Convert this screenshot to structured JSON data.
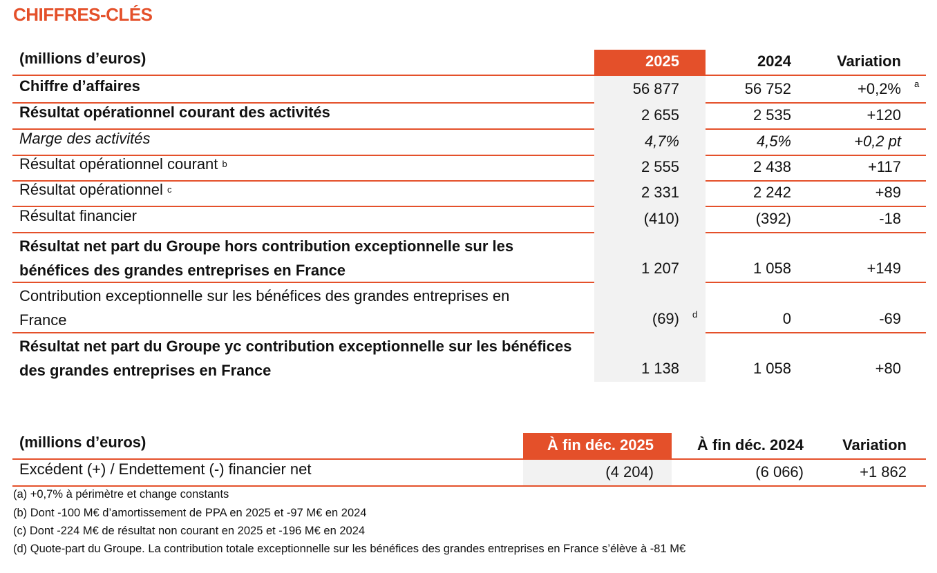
{
  "title": "CHIFFRES-CLÉS",
  "table1": {
    "header": {
      "label": "(millions d’euros)",
      "col1": "2025",
      "col2": "2024",
      "col3": "Variation"
    },
    "rows": [
      {
        "label": "Chiffre d’affaires",
        "col1": "56 877",
        "col2": "56 752",
        "col3": "+0,2%",
        "note": "a"
      },
      {
        "label": "Résultat opérationnel courant des activités",
        "col1": "2 655",
        "col2": "2 535",
        "col3": "+120"
      },
      {
        "label": "Marge des activités",
        "col1": "4,7%",
        "col2": "4,5%",
        "col3": "+0,2 pt"
      },
      {
        "label": "Résultat opérationnel courant",
        "note": "b",
        "col1": "2 555",
        "col2": "2 438",
        "col3": "+117"
      },
      {
        "label": "Résultat opérationnel",
        "note": "c",
        "col1": "2 331",
        "col2": "2 242",
        "col3": "+89"
      },
      {
        "label": "Résultat financier",
        "col1": "(410)",
        "col2": "(392)",
        "col3": "-18"
      },
      {
        "label": "Résultat net part du Groupe hors contribution exceptionnelle sur les bénéfices des grandes entreprises en France",
        "col1": "1 207",
        "col2": "1 058",
        "col3": "+149"
      },
      {
        "label": "Contribution exceptionnelle sur les bénéfices des grandes entreprises en France",
        "col1": "(69)",
        "note": "d",
        "col2": "0",
        "col3": "-69"
      },
      {
        "label": "Résultat net part du Groupe yc contribution exceptionnelle sur les bénéfices des grandes entreprises en France",
        "col1": "1 138",
        "col2": "1 058",
        "col3": "+80"
      }
    ]
  },
  "table2": {
    "header": {
      "label": "(millions d’euros)",
      "col1": "À fin déc. 2025",
      "col2": "À fin déc. 2024",
      "col3": "Variation"
    },
    "rows": [
      {
        "label": "Excédent (+) / Endettement (-) financier net",
        "col1": "(4 204)",
        "col2": "(6 066)",
        "col3": "+1 862"
      }
    ]
  },
  "footnotes": [
    "(a) +0,7% à périmètre et change constants",
    "(b) Dont -100 M€ d’amortissement de PPA en 2025 et -97 M€ en 2024",
    "(c) Dont -224 M€ de résultat non courant en 2025 et -196 M€ en 2024",
    "(d) Quote-part du Groupe. La contribution totale exceptionnelle sur les bénéfices des grandes entreprises en France s’élève à -81 M€"
  ],
  "colors": {
    "accent": "#E4502A",
    "highlight_bg": "#F2F2F2"
  }
}
